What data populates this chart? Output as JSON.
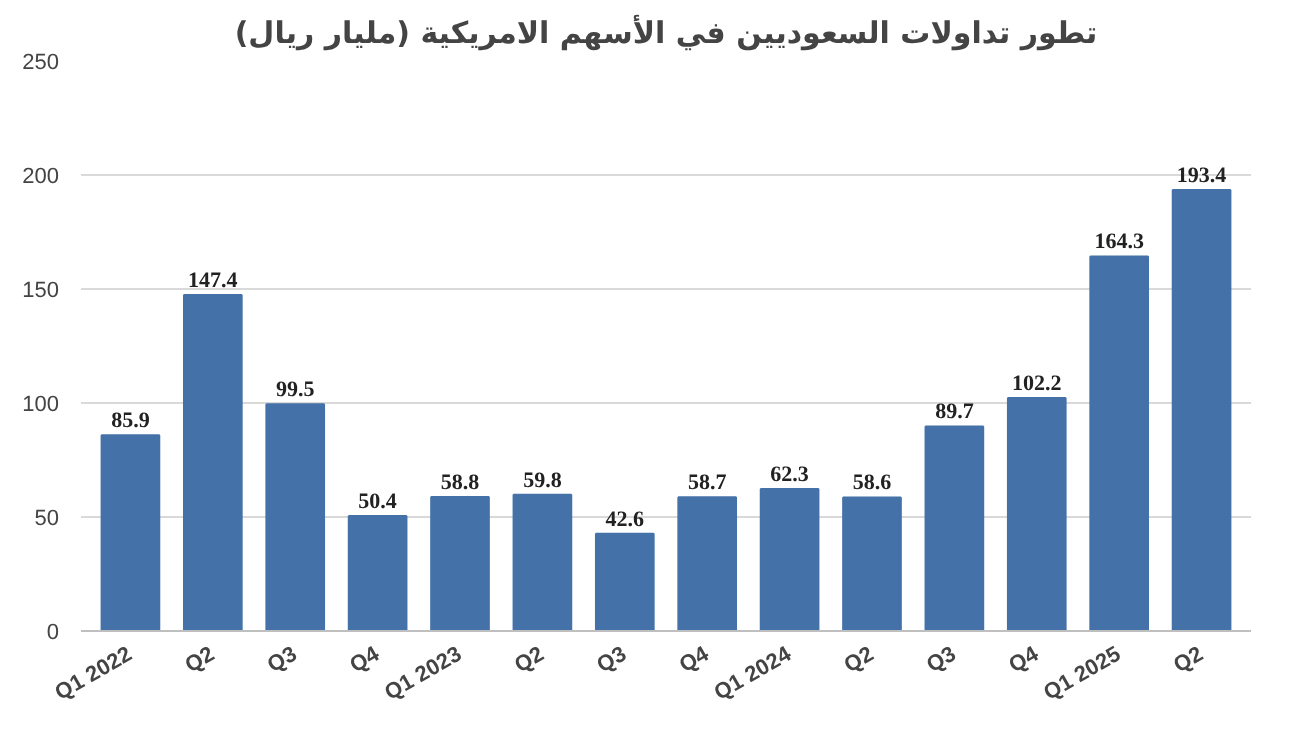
{
  "chart_data": {
    "type": "bar",
    "title": "تطور تداولات السعوديين في الأسهم الامريكية (مليار ريال)",
    "categories": [
      "Q1 2022",
      "Q2",
      "Q3",
      "Q4",
      "Q1 2023",
      "Q2",
      "Q3",
      "Q4",
      "Q1 2024",
      "Q2",
      "Q3",
      "Q4",
      "Q1 2025",
      "Q2"
    ],
    "values": [
      85.9,
      147.4,
      99.5,
      50.4,
      58.8,
      59.8,
      42.6,
      58.7,
      62.3,
      58.6,
      89.7,
      102.2,
      164.3,
      193.4
    ],
    "color": "#4472a8",
    "ylim": [
      0,
      250
    ],
    "yticks": [
      0,
      50,
      100,
      150,
      200,
      250
    ],
    "grid": "y",
    "data_labels": true
  }
}
